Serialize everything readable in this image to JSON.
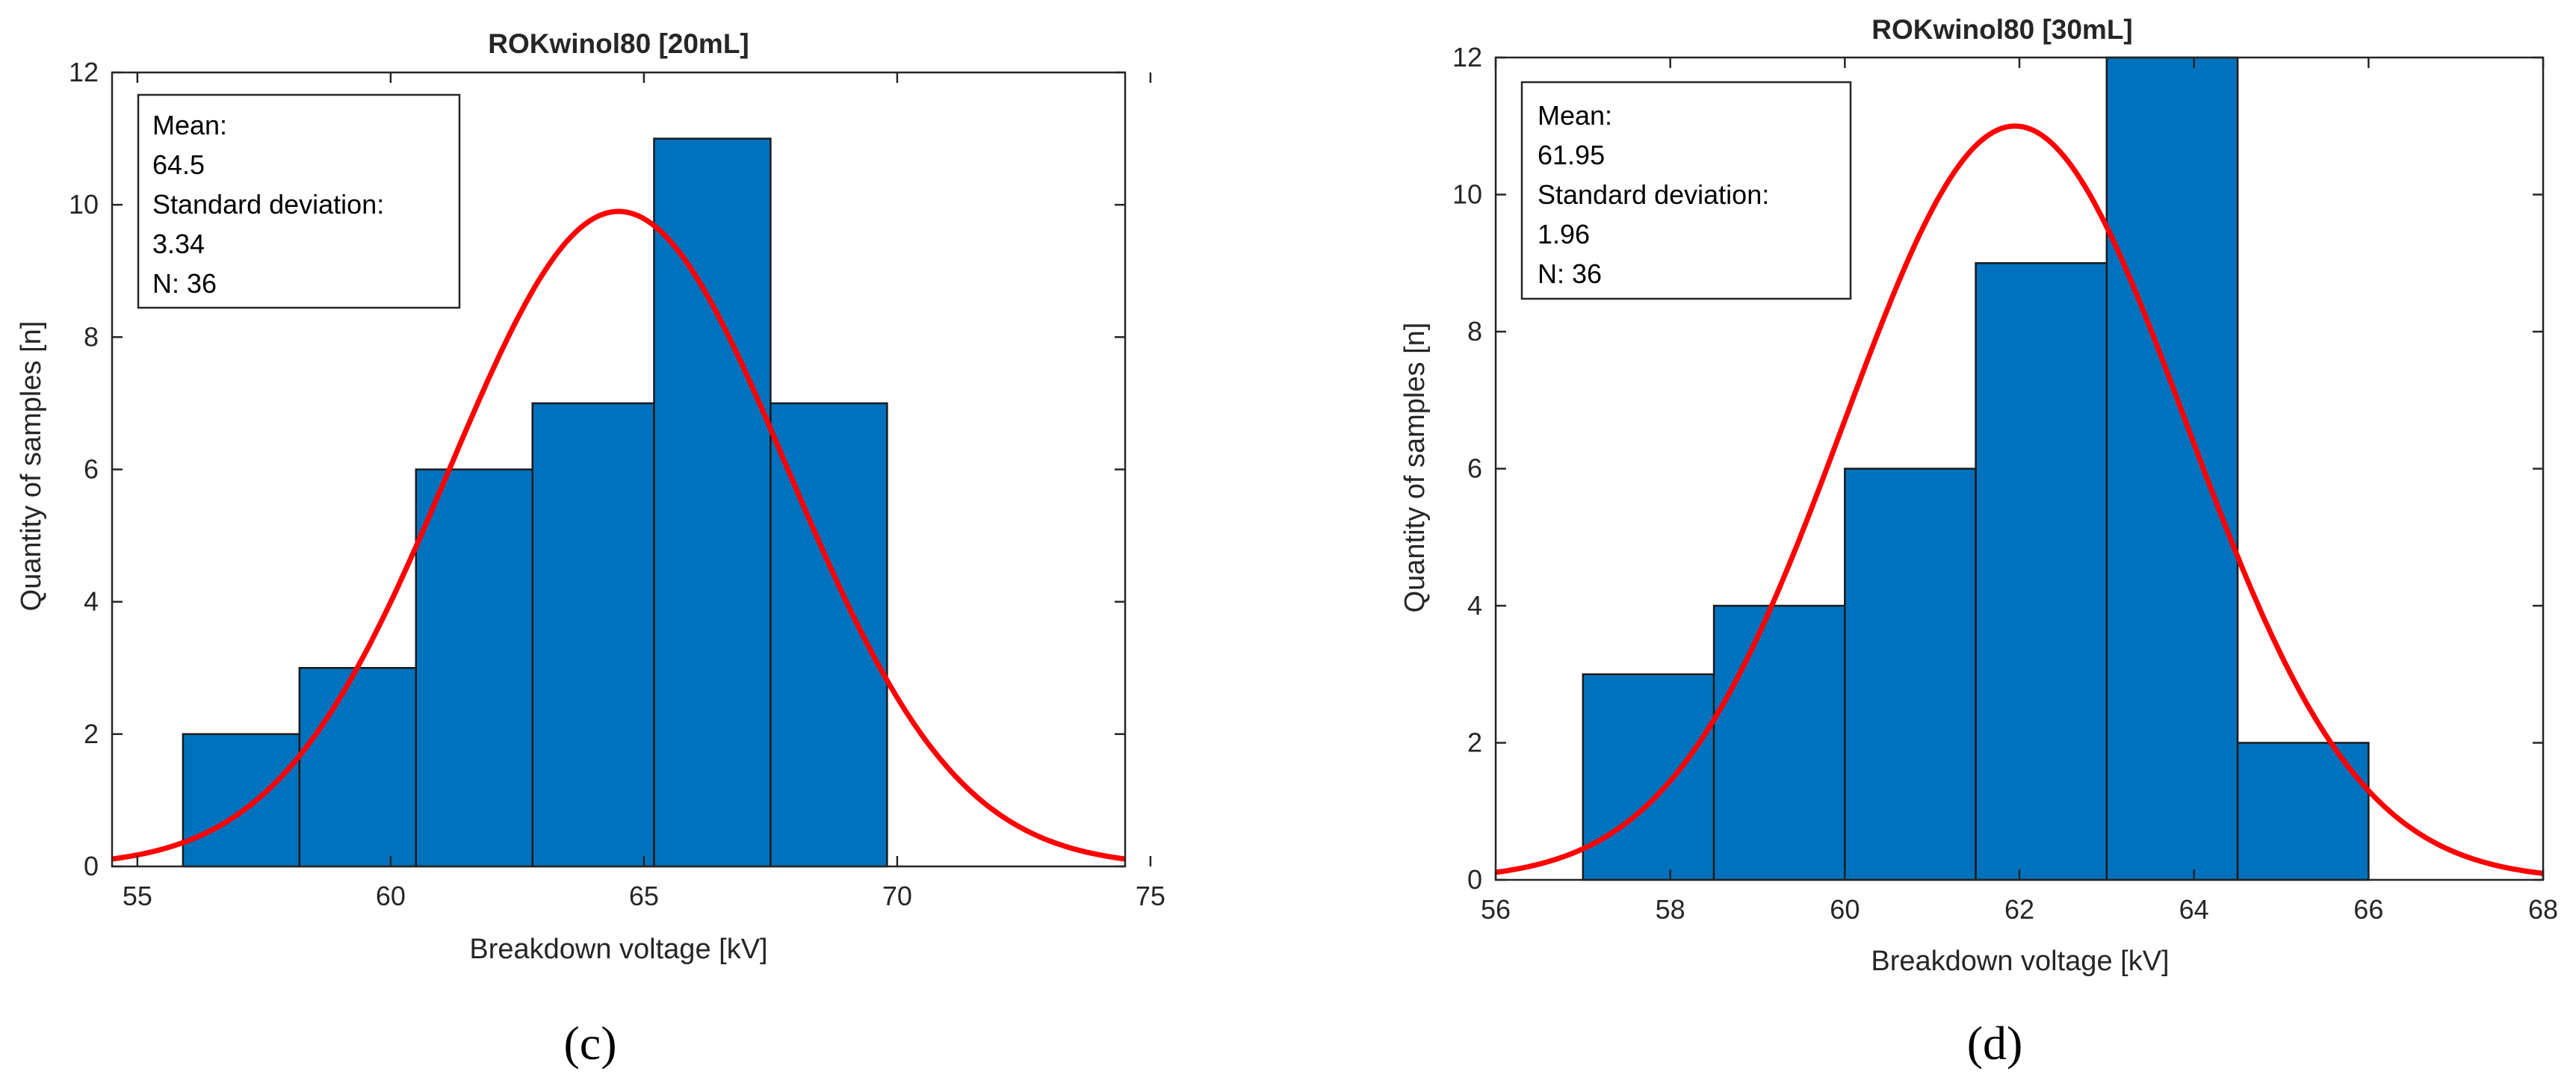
{
  "colors": {
    "bar": "#0072BD",
    "bar_edge": "#1a1a1a",
    "curve": "#FF0000",
    "axis": "#262626"
  },
  "chart_data": [
    {
      "type": "bar",
      "panel_label": "(c)",
      "title": "ROKwinol80 [20mL]",
      "xlabel": "Breakdown voltage [kV]",
      "ylabel": "Quantity of samples [n]",
      "xlim": [
        54.5,
        74.5
      ],
      "ylim": [
        0,
        12
      ],
      "xticks": [
        55,
        60,
        65,
        70,
        75
      ],
      "yticks": [
        0,
        2,
        4,
        6,
        8,
        10,
        12
      ],
      "bin_edges": [
        55.9,
        58.2,
        60.5,
        62.8,
        65.2,
        67.5,
        69.8
      ],
      "values": [
        2,
        3,
        6,
        7,
        11,
        7
      ],
      "fit": {
        "mean": 64.5,
        "std": 3.34,
        "peak": 9.9
      },
      "stats": {
        "mean_label": "Mean:",
        "mean": "64.5",
        "std_label": "Standard deviation:",
        "std": "3.34",
        "n": "N: 36"
      }
    },
    {
      "type": "bar",
      "panel_label": "(d)",
      "title": "ROKwinol80 [30mL]",
      "xlabel": "Breakdown voltage [kV]",
      "ylabel": "Quantity of samples [n]",
      "xlim": [
        56,
        68
      ],
      "ylim": [
        0,
        12
      ],
      "xticks": [
        56,
        58,
        60,
        62,
        64,
        66,
        68
      ],
      "yticks": [
        0,
        2,
        4,
        6,
        8,
        10,
        12
      ],
      "bin_edges": [
        57.0,
        58.5,
        60.0,
        61.5,
        63.0,
        64.5,
        66.0
      ],
      "values": [
        3,
        4,
        6,
        9,
        12,
        2
      ],
      "fit": {
        "mean": 61.95,
        "std": 1.96,
        "peak": 11.0
      },
      "stats": {
        "mean_label": "Mean:",
        "mean": "61.95",
        "std_label": "Standard deviation:",
        "std": "1.96",
        "n": "N: 36"
      }
    }
  ]
}
